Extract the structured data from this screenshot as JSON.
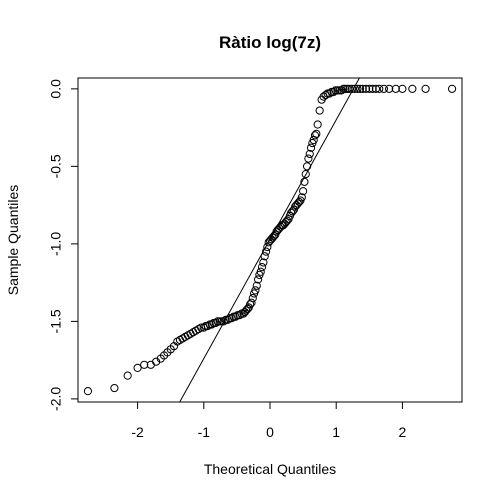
{
  "chart_data": {
    "type": "scatter",
    "title": "Ràtio log(7z)",
    "xlabel": "Theoretical Quantiles",
    "ylabel": "Sample Quantiles",
    "xlim": [
      -2.9,
      2.9
    ],
    "ylim": [
      -2.02,
      0.07
    ],
    "x_ticks": [
      -2,
      -1,
      0,
      1,
      2
    ],
    "x_tick_labels": [
      "-2",
      "-1",
      "0",
      "1",
      "2"
    ],
    "y_ticks": [
      -2.0,
      -1.5,
      -1.0,
      -0.5,
      0.0
    ],
    "y_tick_labels": [
      "-2.0",
      "-1.5",
      "-1.0",
      "-0.5",
      "0.0"
    ],
    "grid": false,
    "legend": "none",
    "reference_line": {
      "slope": 0.77,
      "intercept": -0.97
    },
    "points_x": [
      -2.75,
      -2.35,
      -2.15,
      -2.0,
      -1.9,
      -1.8,
      -1.72,
      -1.65,
      -1.6,
      -1.55,
      -1.5,
      -1.45,
      -1.4,
      -1.36,
      -1.32,
      -1.28,
      -1.24,
      -1.2,
      -1.16,
      -1.12,
      -1.08,
      -1.04,
      -1.0,
      -0.97,
      -0.94,
      -0.91,
      -0.88,
      -0.85,
      -0.82,
      -0.79,
      -0.76,
      -0.73,
      -0.7,
      -0.67,
      -0.64,
      -0.61,
      -0.58,
      -0.55,
      -0.52,
      -0.49,
      -0.46,
      -0.43,
      -0.4,
      -0.38,
      -0.36,
      -0.34,
      -0.32,
      -0.3,
      -0.28,
      -0.26,
      -0.24,
      -0.22,
      -0.2,
      -0.18,
      -0.16,
      -0.14,
      -0.12,
      -0.1,
      -0.08,
      -0.06,
      -0.04,
      -0.02,
      0.0,
      0.02,
      0.04,
      0.06,
      0.08,
      0.1,
      0.12,
      0.14,
      0.16,
      0.18,
      0.2,
      0.22,
      0.24,
      0.26,
      0.28,
      0.3,
      0.32,
      0.34,
      0.36,
      0.38,
      0.4,
      0.42,
      0.44,
      0.46,
      0.48,
      0.5,
      0.52,
      0.54,
      0.56,
      0.58,
      0.6,
      0.62,
      0.64,
      0.66,
      0.68,
      0.7,
      0.72,
      0.75,
      0.78,
      0.81,
      0.84,
      0.87,
      0.9,
      0.93,
      0.96,
      0.99,
      1.02,
      1.05,
      1.08,
      1.11,
      1.14,
      1.17,
      1.2,
      1.24,
      1.28,
      1.32,
      1.36,
      1.4,
      1.45,
      1.5,
      1.55,
      1.6,
      1.65,
      1.72,
      1.8,
      1.9,
      2.0,
      2.15,
      2.35,
      2.75
    ],
    "points_y": [
      -1.95,
      -1.93,
      -1.85,
      -1.8,
      -1.78,
      -1.78,
      -1.76,
      -1.74,
      -1.72,
      -1.7,
      -1.68,
      -1.66,
      -1.63,
      -1.62,
      -1.61,
      -1.6,
      -1.59,
      -1.58,
      -1.57,
      -1.56,
      -1.55,
      -1.54,
      -1.54,
      -1.53,
      -1.53,
      -1.52,
      -1.52,
      -1.51,
      -1.51,
      -1.5,
      -1.5,
      -1.5,
      -1.5,
      -1.49,
      -1.49,
      -1.48,
      -1.48,
      -1.47,
      -1.47,
      -1.46,
      -1.46,
      -1.45,
      -1.45,
      -1.44,
      -1.43,
      -1.42,
      -1.41,
      -1.39,
      -1.38,
      -1.35,
      -1.32,
      -1.3,
      -1.27,
      -1.23,
      -1.2,
      -1.18,
      -1.15,
      -1.12,
      -1.08,
      -1.05,
      -1.02,
      -0.99,
      -0.98,
      -0.97,
      -0.96,
      -0.95,
      -0.94,
      -0.92,
      -0.91,
      -0.9,
      -0.89,
      -0.88,
      -0.88,
      -0.87,
      -0.86,
      -0.85,
      -0.84,
      -0.82,
      -0.8,
      -0.79,
      -0.78,
      -0.76,
      -0.75,
      -0.74,
      -0.73,
      -0.72,
      -0.7,
      -0.66,
      -0.6,
      -0.55,
      -0.5,
      -0.45,
      -0.42,
      -0.38,
      -0.35,
      -0.33,
      -0.3,
      -0.29,
      -0.23,
      -0.14,
      -0.07,
      -0.05,
      -0.04,
      -0.03,
      -0.03,
      -0.02,
      -0.02,
      -0.01,
      -0.01,
      -0.01,
      -0.01,
      0.0,
      0.0,
      0.0,
      0.0,
      0.0,
      0.0,
      0.0,
      0.0,
      0.0,
      0.0,
      0.0,
      0.0,
      0.0,
      0.0,
      0.0,
      0.0,
      0.0,
      0.0,
      0.0,
      0.0,
      0.0
    ]
  }
}
